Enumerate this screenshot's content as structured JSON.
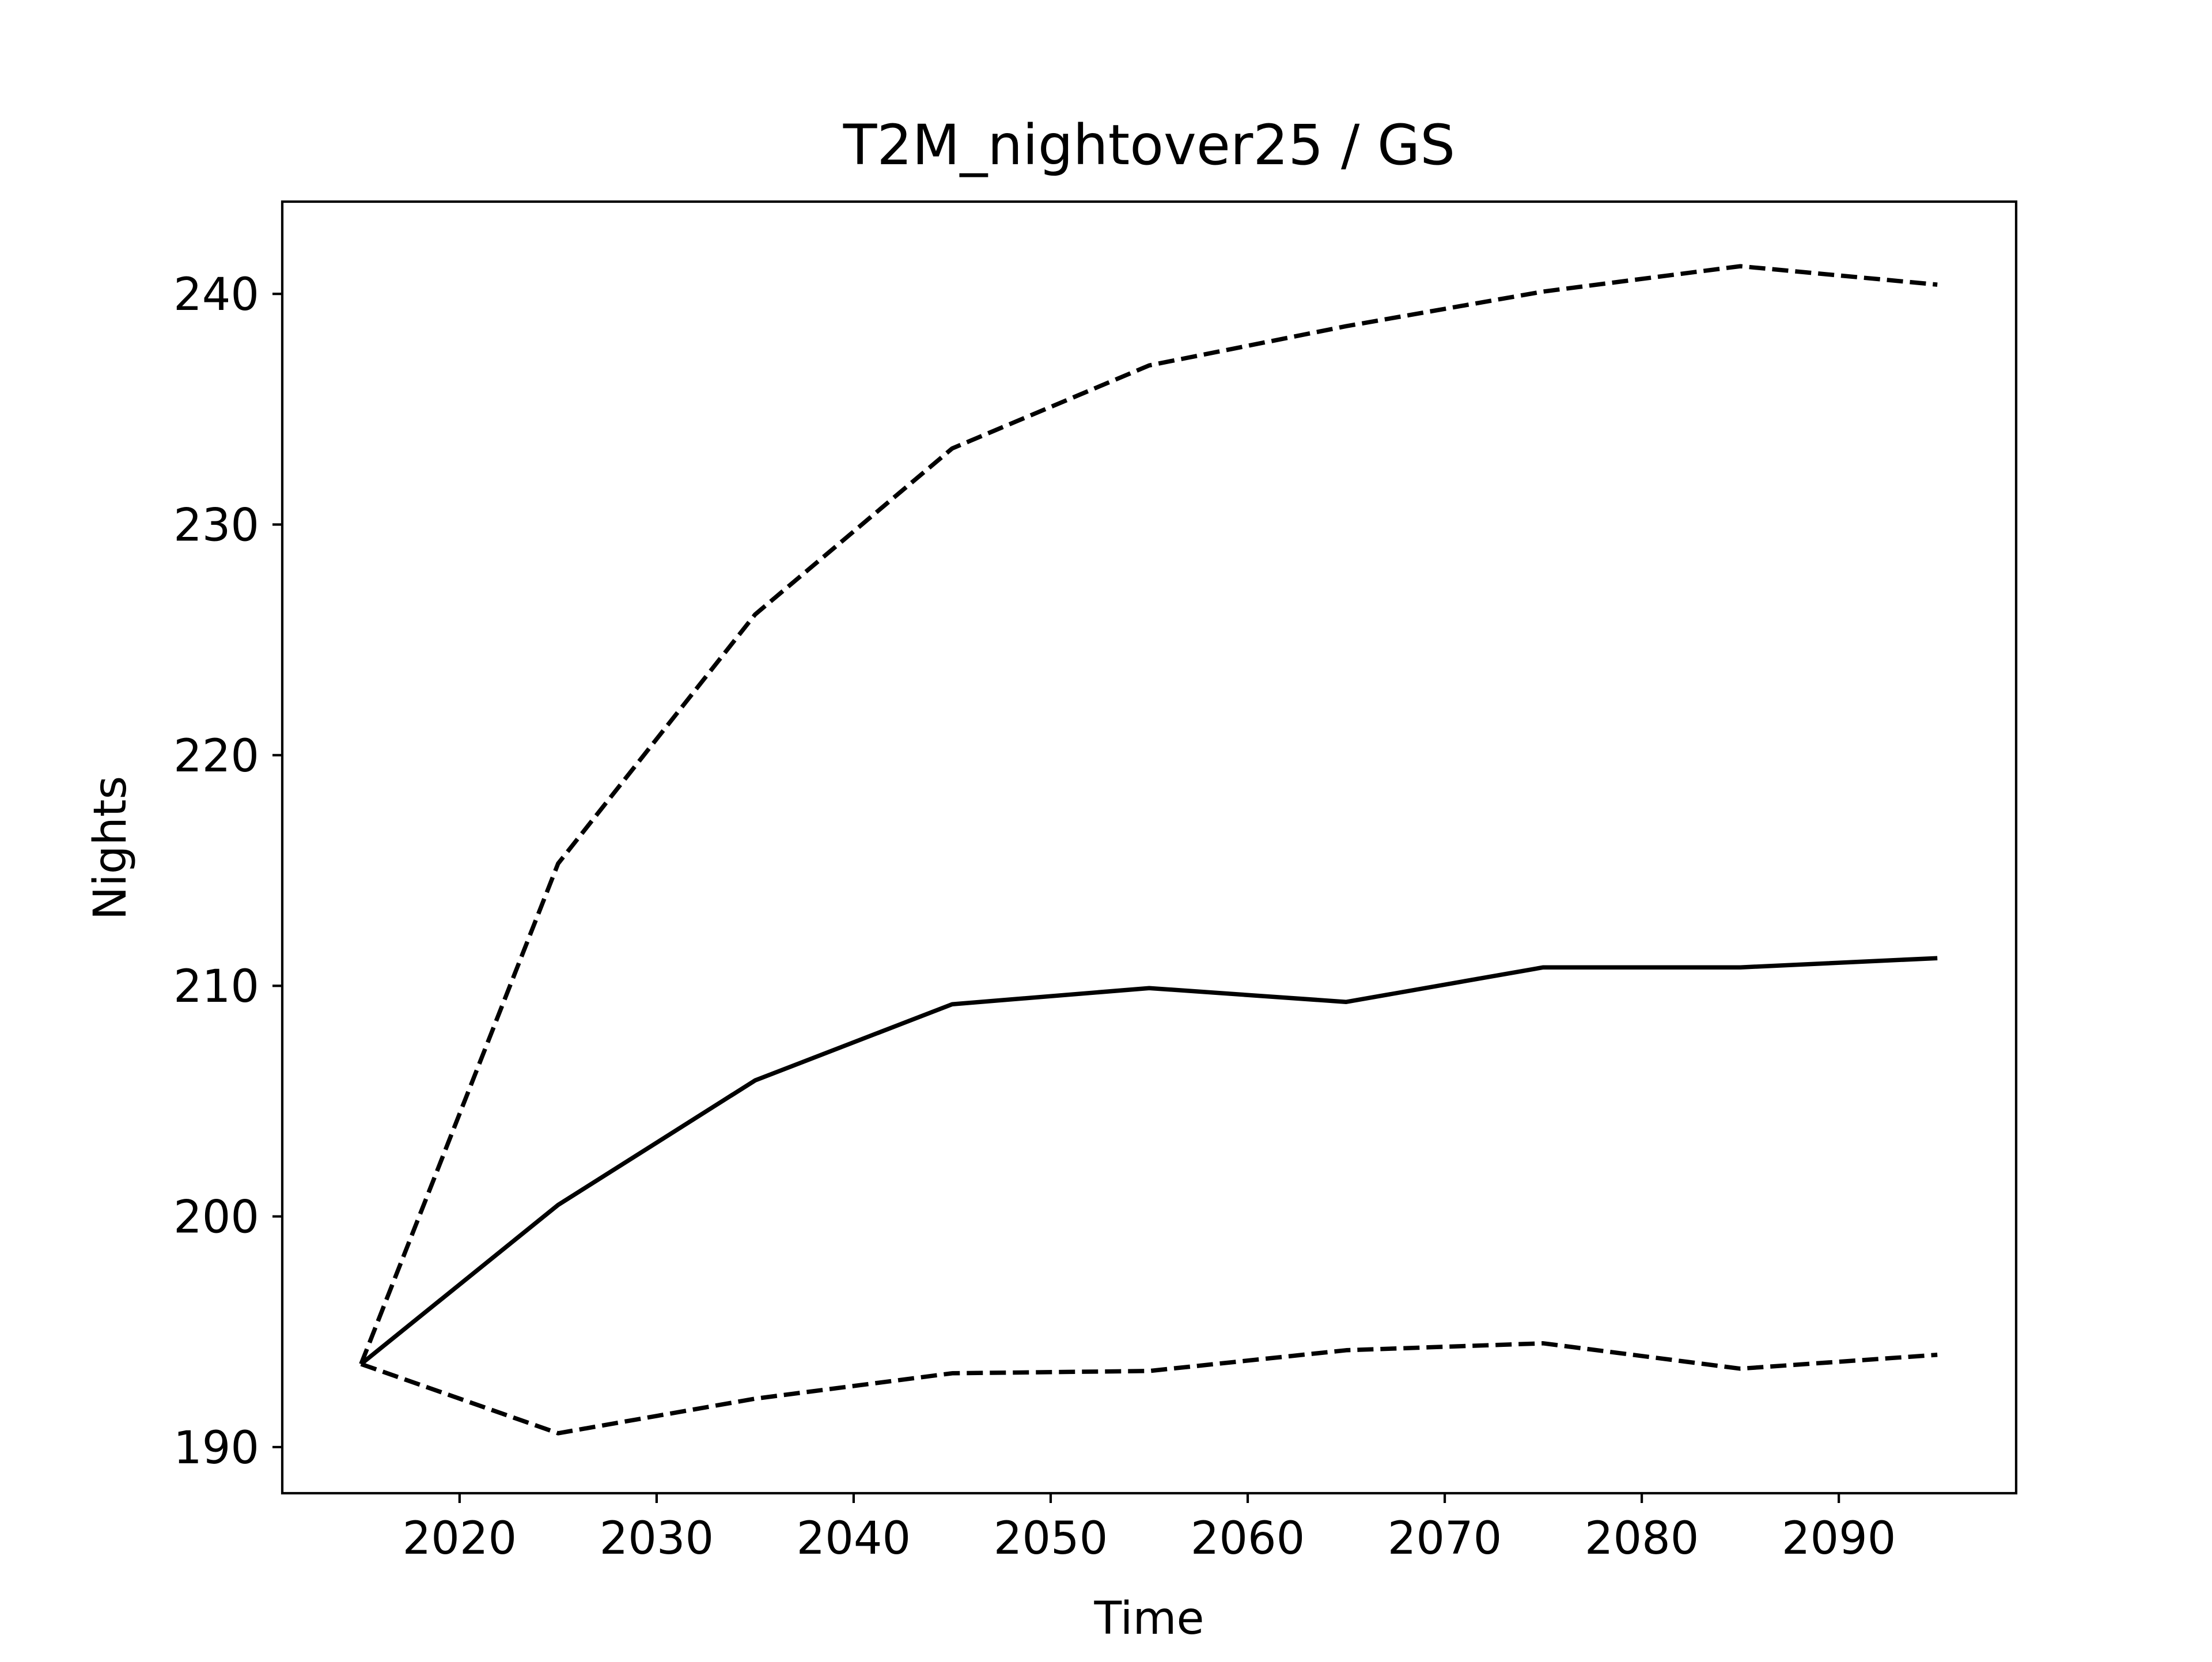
{
  "chart_data": {
    "type": "line",
    "title": "T2M_nightover25 / GS",
    "xlabel": "Time",
    "ylabel": "Nights",
    "xlim": [
      2011,
      2099
    ],
    "ylim": [
      188,
      244
    ],
    "xticks": [
      2020,
      2030,
      2040,
      2050,
      2060,
      2070,
      2080,
      2090
    ],
    "yticks": [
      190,
      200,
      210,
      220,
      230,
      240
    ],
    "grid": false,
    "x": [
      2015,
      2025,
      2035,
      2045,
      2055,
      2065,
      2075,
      2085,
      2095
    ],
    "series": [
      {
        "style": "dashed",
        "color": "#000000",
        "values": [
          193.6,
          215.3,
          226.1,
          233.3,
          236.9,
          238.6,
          240.1,
          241.2,
          240.4
        ]
      },
      {
        "style": "solid",
        "color": "#000000",
        "values": [
          193.6,
          200.5,
          205.9,
          209.2,
          209.9,
          209.3,
          210.8,
          210.8,
          211.2
        ]
      },
      {
        "style": "dashed",
        "color": "#000000",
        "values": [
          193.6,
          190.6,
          192.1,
          193.2,
          193.3,
          194.2,
          194.5,
          193.4,
          194.0
        ]
      }
    ]
  }
}
